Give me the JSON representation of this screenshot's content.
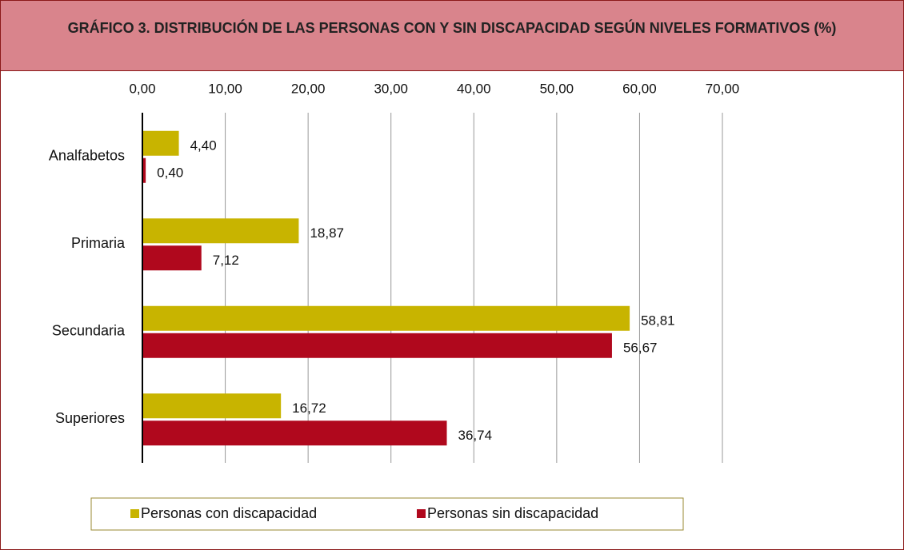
{
  "chart_data": {
    "type": "hbar",
    "title": "GRÁFICO  3. DISTRIBUCIÓN DE LAS PERSONAS CON Y SIN DISCAPACIDAD SEGÚN NIVELES FORMATIVOS (%)",
    "categories": [
      "Analfabetos",
      "Primaria",
      "Secundaria",
      "Superiores"
    ],
    "series": [
      {
        "name": "Personas con discapacidad",
        "color": "#c8b400",
        "values": [
          4.4,
          18.87,
          58.81,
          16.72
        ],
        "value_labels": [
          "4,40",
          "18,87",
          "58,81",
          "16,72"
        ]
      },
      {
        "name": "Personas sin discapacidad",
        "color": "#b0081d",
        "values": [
          0.4,
          7.12,
          56.67,
          36.74
        ],
        "value_labels": [
          "0,40",
          "7,12",
          "56,67",
          "36,74"
        ]
      }
    ],
    "xlim": [
      0,
      70
    ],
    "xticks": [
      {
        "value": 0,
        "label": "0,00"
      },
      {
        "value": 10,
        "label": "10,00"
      },
      {
        "value": 20,
        "label": "20,00"
      },
      {
        "value": 30,
        "label": "30,00"
      },
      {
        "value": 40,
        "label": "40,00"
      },
      {
        "value": 50,
        "label": "50,00"
      },
      {
        "value": 60,
        "label": "60,00"
      },
      {
        "value": 70,
        "label": "70,00"
      }
    ],
    "grid": true,
    "legend": "bottom"
  }
}
